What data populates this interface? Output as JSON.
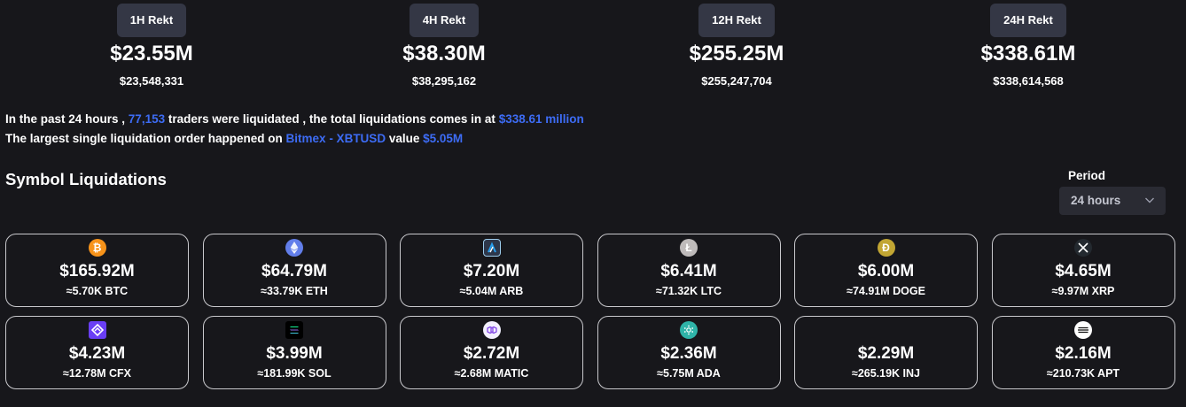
{
  "stats": [
    {
      "tab": "1H Rekt",
      "value": "$23.55M",
      "exact": "$23,548,331"
    },
    {
      "tab": "4H Rekt",
      "value": "$38.30M",
      "exact": "$38,295,162"
    },
    {
      "tab": "12H Rekt",
      "value": "$255.25M",
      "exact": "$255,247,704"
    },
    {
      "tab": "24H Rekt",
      "value": "$338.61M",
      "exact": "$338,614,568"
    }
  ],
  "summary": {
    "line1_a": "In the past 24 hours ,",
    "traders": "77,153",
    "line1_b": "traders were liquidated , the total liquidations comes in at",
    "total": "$338.61 million",
    "line2_a": "The largest single liquidation order happened on",
    "exchange": "Bitmex - XBTUSD",
    "line2_b": "value",
    "largest": "$5.05M"
  },
  "section": {
    "title": "Symbol Liquidations"
  },
  "period": {
    "label": "Period",
    "selected": "24 hours"
  },
  "colors": {
    "background": "#17171b",
    "accent": "#3d6cf5",
    "tab": "#343745",
    "card_border": "#c8c8cc"
  },
  "cards": [
    {
      "icon": "bitcoin-icon",
      "usd": "$165.92M",
      "qty": "≈5.70K BTC"
    },
    {
      "icon": "ethereum-icon",
      "usd": "$64.79M",
      "qty": "≈33.79K ETH"
    },
    {
      "icon": "arbitrum-icon",
      "usd": "$7.20M",
      "qty": "≈5.04M ARB"
    },
    {
      "icon": "litecoin-icon",
      "usd": "$6.41M",
      "qty": "≈71.32K LTC"
    },
    {
      "icon": "dogecoin-icon",
      "usd": "$6.00M",
      "qty": "≈74.91M DOGE"
    },
    {
      "icon": "xrp-icon",
      "usd": "$4.65M",
      "qty": "≈9.97M XRP"
    },
    {
      "icon": "conflux-icon",
      "usd": "$4.23M",
      "qty": "≈12.78M CFX"
    },
    {
      "icon": "solana-icon",
      "usd": "$3.99M",
      "qty": "≈181.99K SOL"
    },
    {
      "icon": "polygon-icon",
      "usd": "$2.72M",
      "qty": "≈2.68M MATIC"
    },
    {
      "icon": "cardano-icon",
      "usd": "$2.36M",
      "qty": "≈5.75M ADA"
    },
    {
      "icon": "injective-icon",
      "usd": "$2.29M",
      "qty": "≈265.19K INJ"
    },
    {
      "icon": "aptos-icon",
      "usd": "$2.16M",
      "qty": "≈210.73K APT"
    }
  ]
}
